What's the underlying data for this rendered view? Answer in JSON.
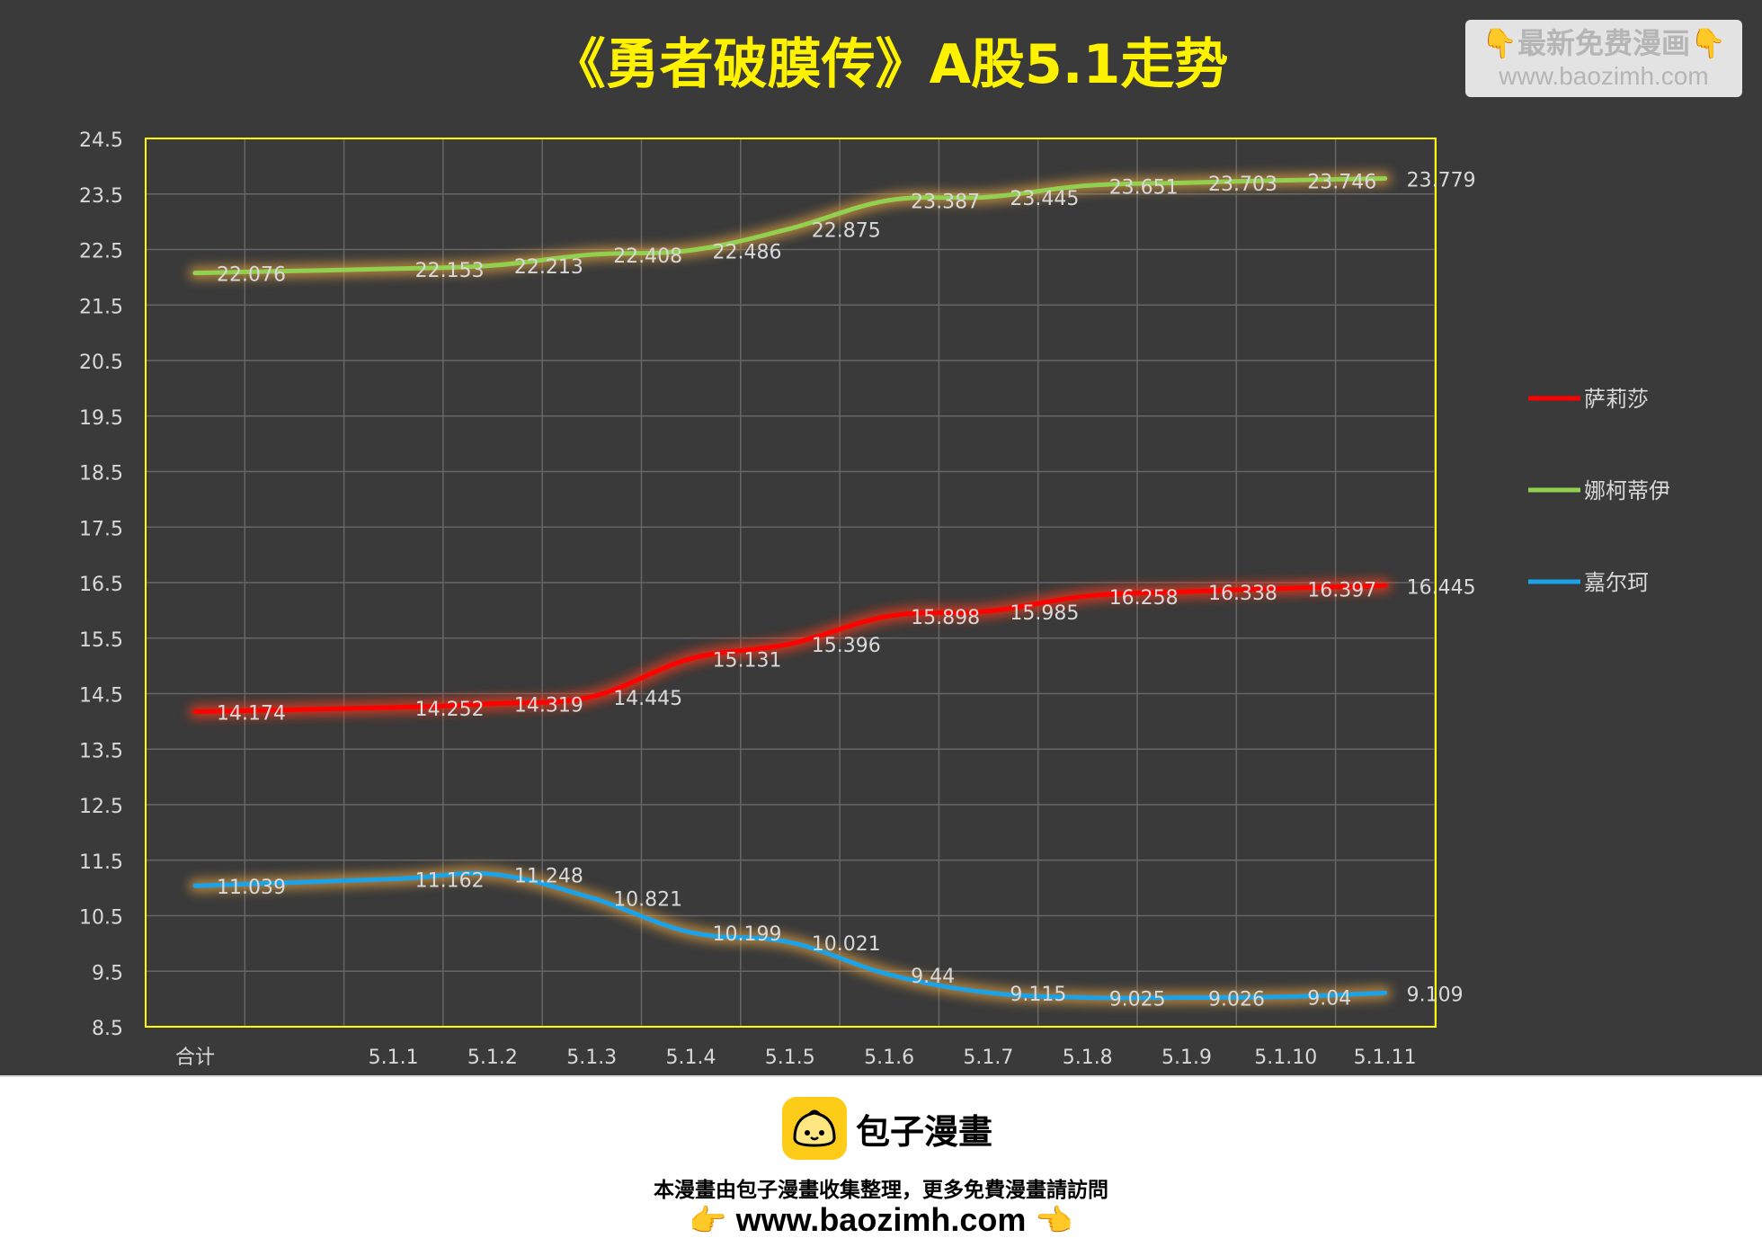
{
  "colors": {
    "background": "#3a3a3a",
    "title": "#fff200",
    "frame": "#ffff00",
    "grid": "#6a6a6a",
    "label": "#d8d8d8"
  },
  "chart_data": {
    "type": "line",
    "title": "《勇者破膜传》A股5.1走势",
    "categories": [
      "合计",
      "",
      "5.1.1",
      "5.1.2",
      "5.1.3",
      "5.1.4",
      "5.1.5",
      "5.1.6",
      "5.1.7",
      "5.1.8",
      "5.1.9",
      "5.1.10",
      "5.1.11"
    ],
    "ylim": [
      8.5,
      24.5
    ],
    "yticks": [
      "24.5",
      "23.5",
      "22.5",
      "21.5",
      "20.5",
      "19.5",
      "18.5",
      "17.5",
      "16.5",
      "15.5",
      "14.5",
      "13.5",
      "12.5",
      "11.5",
      "10.5",
      "9.5",
      "8.5"
    ],
    "grid": true,
    "legend_position": "right",
    "series": [
      {
        "name": "萨莉莎",
        "color": "#ff0000",
        "glow": "#ff3a1a",
        "values": [
          14.174,
          null,
          14.252,
          14.319,
          14.445,
          15.131,
          15.396,
          15.898,
          15.985,
          16.258,
          16.338,
          16.397,
          16.445
        ],
        "labels": [
          "14.174",
          "",
          "14.252",
          "14.319",
          "14.445",
          "15.131",
          "15.396",
          "15.898",
          "15.985",
          "16.258",
          "16.338",
          "16.397",
          "16.445"
        ]
      },
      {
        "name": "娜柯蒂伊",
        "color": "#92d050",
        "glow": "#e0a040",
        "values": [
          22.076,
          null,
          22.153,
          22.213,
          22.408,
          22.486,
          22.875,
          23.387,
          23.445,
          23.651,
          23.703,
          23.746,
          23.779
        ],
        "labels": [
          "22.076",
          "",
          "22.153",
          "22.213",
          "22.408",
          "22.486",
          "22.875",
          "23.387",
          "23.445",
          "23.651",
          "23.703",
          "23.746",
          "23.779"
        ]
      },
      {
        "name": "嘉尔珂",
        "color": "#1aa3e8",
        "glow": "#e0a040",
        "values": [
          11.039,
          null,
          11.162,
          11.248,
          10.821,
          10.199,
          10.021,
          9.44,
          9.115,
          9.025,
          9.026,
          9.04,
          9.109
        ],
        "labels": [
          "11.039",
          "",
          "11.162",
          "11.248",
          "10.821",
          "10.199",
          "10.021",
          "9.44",
          "9.115",
          "9.025",
          "9.026",
          "9.04",
          "9.109"
        ]
      }
    ]
  },
  "watermark": {
    "line1": "最新免费漫画",
    "line2": "www.baozimh.com",
    "hand": "👇"
  },
  "footer": {
    "brand": "包子漫畫",
    "note": "本漫畫由包子漫畫收集整理，更多免費漫畫請訪問",
    "url": "www.baozimh.com",
    "left_pointer": "👉",
    "right_pointer": "👈"
  }
}
